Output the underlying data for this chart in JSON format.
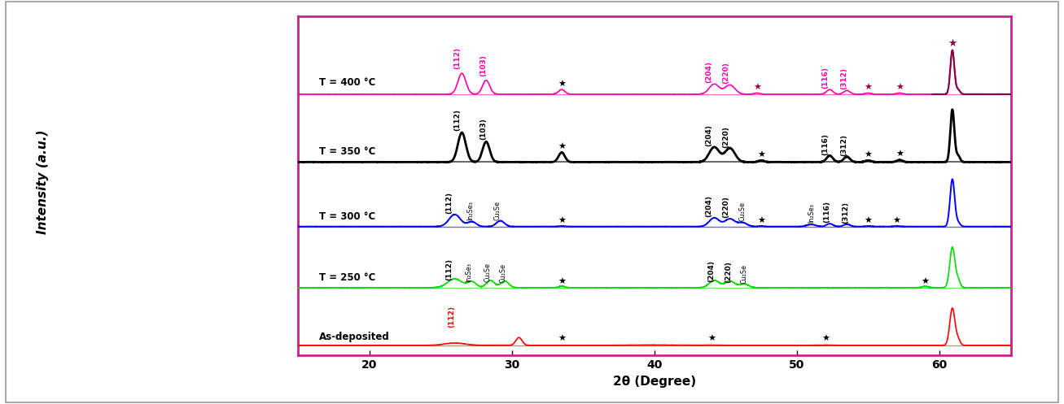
{
  "title": "",
  "xlabel": "2θ (Degree)",
  "ylabel": "Intensity (a.u.)",
  "xlim": [
    15,
    65
  ],
  "colors": {
    "as_deposited": "#ff0000",
    "T250": "#00dd00",
    "T300": "#0000ff",
    "T350": "#000000",
    "T400_line": "#ff00aa",
    "T400_dark": "#880044"
  },
  "labels": {
    "as_deposited": "As-deposited",
    "T250": "T = 250 °C",
    "T300": "T = 300 °C",
    "T350": "T = 350 °C",
    "T400": "T = 400 °C"
  },
  "fig_bg": "#ffffff",
  "plot_bg": "#ffffff",
  "border_color": "#cc2288",
  "outer_border": "#aaaaaa"
}
